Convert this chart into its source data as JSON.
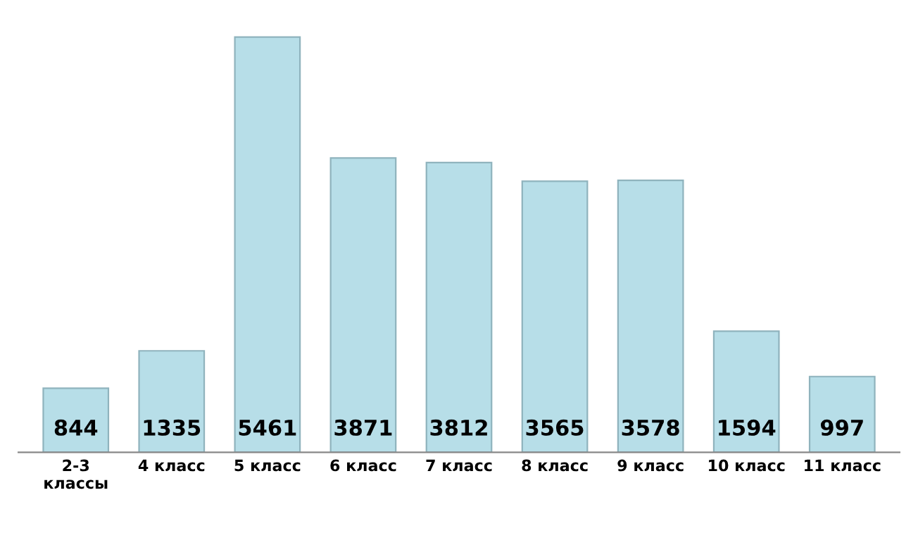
{
  "chart_data": {
    "type": "bar",
    "categories": [
      "2-3\nклассы",
      "4 класс",
      "5 класс",
      "6 класс",
      "7 класс",
      "8 класс",
      "9 класс",
      "10 класс",
      "11 класс"
    ],
    "values": [
      844,
      1335,
      5461,
      3871,
      3812,
      3565,
      3578,
      1594,
      997
    ],
    "color": "#b7dee8",
    "data_labels": true
  }
}
